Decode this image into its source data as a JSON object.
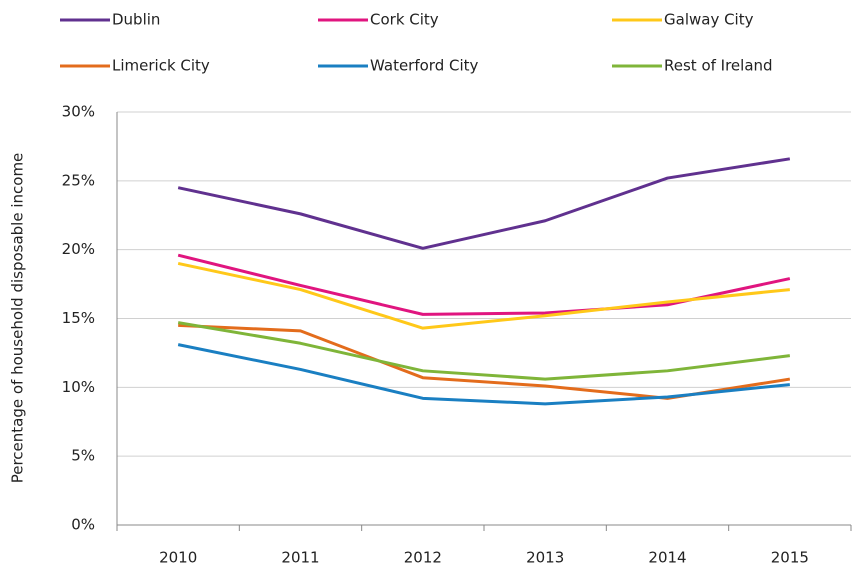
{
  "chart_data": {
    "type": "line",
    "y_label": "Percentage of household disposable income",
    "categories": [
      "2010",
      "2011",
      "2012",
      "2013",
      "2014",
      "2015"
    ],
    "series": [
      {
        "name": "Dublin",
        "color": "#60318f",
        "values": [
          24.5,
          22.6,
          20.1,
          22.1,
          25.2,
          26.6
        ]
      },
      {
        "name": "Cork City",
        "color": "#e0157f",
        "values": [
          19.6,
          17.4,
          15.3,
          15.4,
          16.0,
          17.9
        ]
      },
      {
        "name": "Galway City",
        "color": "#ffc819",
        "values": [
          19.0,
          17.1,
          14.3,
          15.2,
          16.2,
          17.1
        ]
      },
      {
        "name": "Limerick City",
        "color": "#e36c1c",
        "values": [
          14.5,
          14.1,
          10.7,
          10.1,
          9.2,
          10.6
        ]
      },
      {
        "name": "Waterford City",
        "color": "#1a7fc2",
        "values": [
          13.1,
          11.3,
          9.2,
          8.8,
          9.3,
          10.2
        ]
      },
      {
        "name": "Rest of Ireland",
        "color": "#7fb539",
        "values": [
          14.7,
          13.2,
          11.2,
          10.6,
          11.2,
          12.3
        ]
      }
    ],
    "ylim": [
      0,
      30
    ],
    "yticks": [
      {
        "value": 0,
        "label": "0%"
      },
      {
        "value": 5,
        "label": "5%"
      },
      {
        "value": 10,
        "label": "10%"
      },
      {
        "value": 15,
        "label": "15%"
      },
      {
        "value": 20,
        "label": "20%"
      },
      {
        "value": 25,
        "label": "25%"
      },
      {
        "value": 30,
        "label": "30%"
      }
    ],
    "grid": true,
    "legend": "top"
  }
}
